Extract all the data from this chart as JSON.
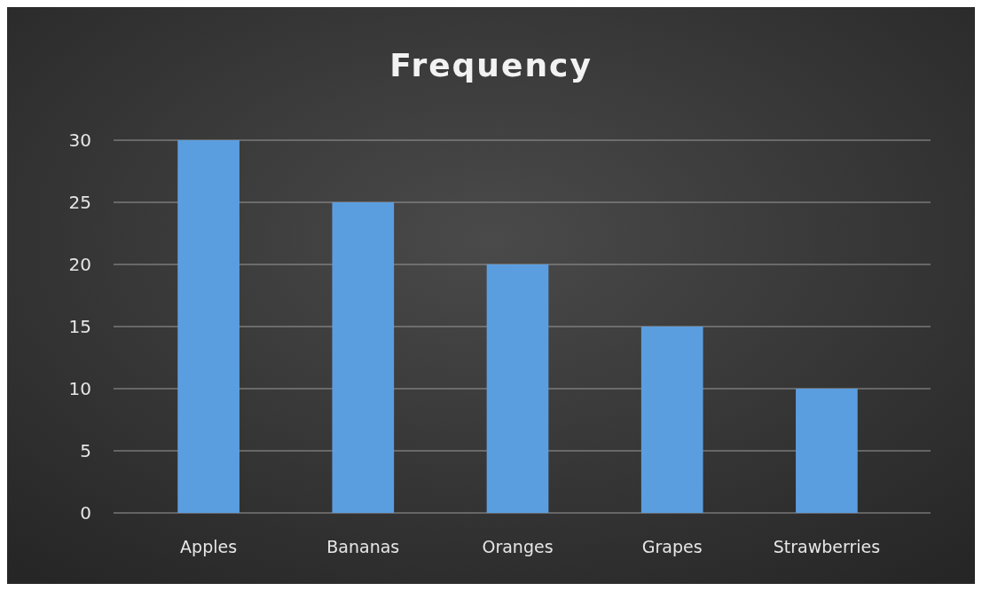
{
  "chart_data": {
    "type": "bar",
    "title": "Frequency",
    "categories": [
      "Apples",
      "Bananas",
      "Oranges",
      "Grapes",
      "Strawberries"
    ],
    "values": [
      30,
      25,
      20,
      15,
      10
    ],
    "color": "#5b9ee0",
    "ylim": [
      0,
      30
    ],
    "yticks": [
      0,
      5,
      10,
      15,
      20,
      25,
      30
    ],
    "grid": true
  }
}
